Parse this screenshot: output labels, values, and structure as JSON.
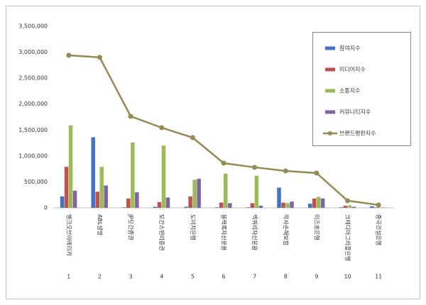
{
  "chart_data": {
    "type": "bar",
    "categories": [
      "뱅크오브아메리카",
      "ABL생명",
      "JP모간증권",
      "모간스탠리증권",
      "도이치은행",
      "블랙록자산운용",
      "맥쿼리자산운용",
      "악사손해보험",
      "미즈호은행",
      "크레디아그리콜은행",
      "중국건설은행"
    ],
    "category_numbers": [
      1,
      2,
      3,
      4,
      5,
      6,
      7,
      8,
      9,
      10,
      11
    ],
    "series": [
      {
        "name": "참여지수",
        "color": "#4472c4",
        "type": "bar",
        "values": [
          220000,
          1360000,
          10000,
          20000,
          20000,
          10000,
          10000,
          390000,
          80000,
          10000,
          30000
        ]
      },
      {
        "name": "미디어지수",
        "color": "#c0504d",
        "type": "bar",
        "values": [
          790000,
          310000,
          180000,
          110000,
          220000,
          100000,
          90000,
          100000,
          180000,
          40000,
          10000
        ]
      },
      {
        "name": "소통지수",
        "color": "#9bbb59",
        "type": "bar",
        "values": [
          1590000,
          790000,
          1260000,
          1200000,
          540000,
          660000,
          620000,
          90000,
          210000,
          50000,
          10000
        ]
      },
      {
        "name": "커뮤니티지수",
        "color": "#8064a2",
        "type": "bar",
        "values": [
          330000,
          430000,
          300000,
          200000,
          560000,
          90000,
          40000,
          120000,
          180000,
          20000,
          5000
        ]
      },
      {
        "name": "브랜드평판지수",
        "color": "#948a54",
        "type": "line",
        "values": [
          2940000,
          2900000,
          1764000,
          1545000,
          1353000,
          861000,
          780000,
          711000,
          670000,
          137000,
          55000
        ]
      }
    ],
    "ylim": [
      0,
      3500000
    ],
    "yticks": [
      0,
      {
        "value": 500000,
        "label": "500,000"
      },
      {
        "value": 1000000,
        "label": "1,000,000"
      },
      {
        "value": 1500000,
        "label": "1,500,000"
      },
      {
        "value": 2000000,
        "label": "2,000,000"
      },
      {
        "value": 2500000,
        "label": "2,500,000"
      },
      {
        "value": 3000000,
        "label": "3,000,000"
      },
      {
        "value": 3500000,
        "label": "3,500,000"
      }
    ],
    "grid": false,
    "legend": "upper right"
  }
}
